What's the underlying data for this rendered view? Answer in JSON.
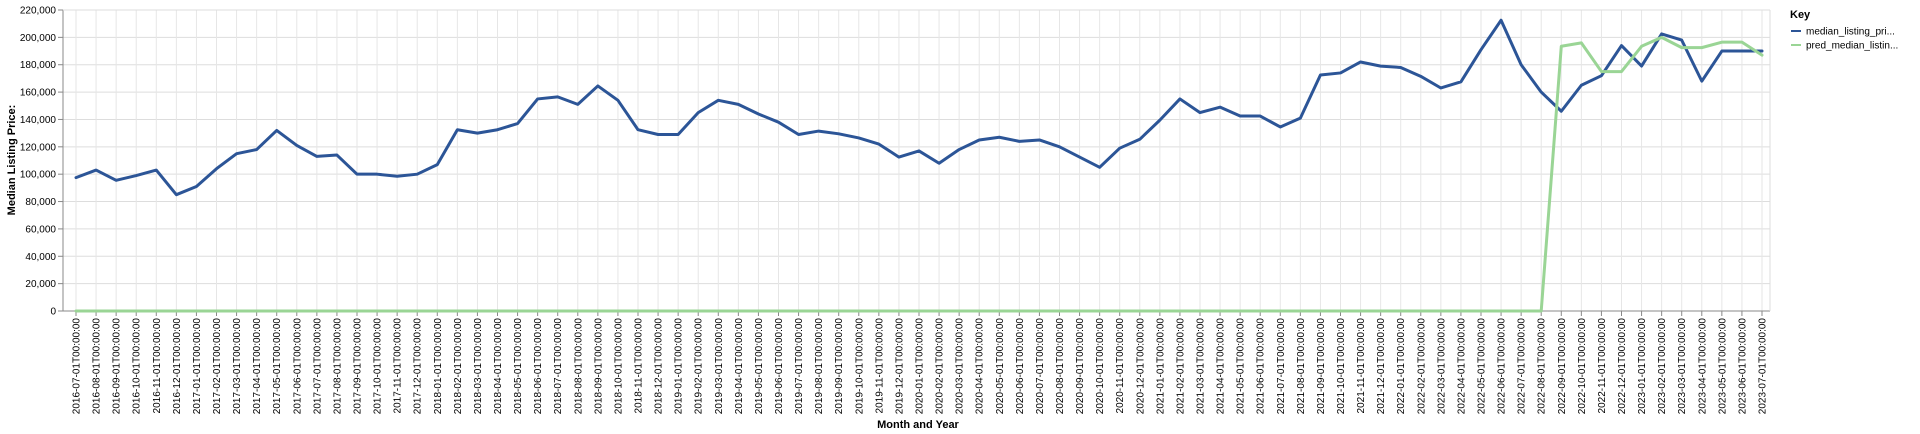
{
  "chart_data": {
    "type": "line",
    "xlabel": "Month and Year",
    "ylabel": "Median Listing Price:",
    "ylim": [
      0,
      220000
    ],
    "yticks": [
      "0",
      "20,000",
      "40,000",
      "60,000",
      "80,000",
      "100,000",
      "120,000",
      "140,000",
      "160,000",
      "180,000",
      "200,000",
      "220,000"
    ],
    "grid": true,
    "legend_position": "right",
    "legend_title": "Key",
    "categories": [
      "2016-07-01T00:00:00",
      "2016-08-01T00:00:00",
      "2016-09-01T00:00:00",
      "2016-10-01T00:00:00",
      "2016-11-01T00:00:00",
      "2016-12-01T00:00:00",
      "2017-01-01T00:00:00",
      "2017-02-01T00:00:00",
      "2017-03-01T00:00:00",
      "2017-04-01T00:00:00",
      "2017-05-01T00:00:00",
      "2017-06-01T00:00:00",
      "2017-07-01T00:00:00",
      "2017-08-01T00:00:00",
      "2017-09-01T00:00:00",
      "2017-10-01T00:00:00",
      "2017-11-01T00:00:00",
      "2017-12-01T00:00:00",
      "2018-01-01T00:00:00",
      "2018-02-01T00:00:00",
      "2018-03-01T00:00:00",
      "2018-04-01T00:00:00",
      "2018-05-01T00:00:00",
      "2018-06-01T00:00:00",
      "2018-07-01T00:00:00",
      "2018-08-01T00:00:00",
      "2018-09-01T00:00:00",
      "2018-10-01T00:00:00",
      "2018-11-01T00:00:00",
      "2018-12-01T00:00:00",
      "2019-01-01T00:00:00",
      "2019-02-01T00:00:00",
      "2019-03-01T00:00:00",
      "2019-04-01T00:00:00",
      "2019-05-01T00:00:00",
      "2019-06-01T00:00:00",
      "2019-07-01T00:00:00",
      "2019-08-01T00:00:00",
      "2019-09-01T00:00:00",
      "2019-10-01T00:00:00",
      "2019-11-01T00:00:00",
      "2019-12-01T00:00:00",
      "2020-01-01T00:00:00",
      "2020-02-01T00:00:00",
      "2020-03-01T00:00:00",
      "2020-04-01T00:00:00",
      "2020-05-01T00:00:00",
      "2020-06-01T00:00:00",
      "2020-07-01T00:00:00",
      "2020-08-01T00:00:00",
      "2020-09-01T00:00:00",
      "2020-10-01T00:00:00",
      "2020-11-01T00:00:00",
      "2020-12-01T00:00:00",
      "2021-01-01T00:00:00",
      "2021-02-01T00:00:00",
      "2021-03-01T00:00:00",
      "2021-04-01T00:00:00",
      "2021-05-01T00:00:00",
      "2021-06-01T00:00:00",
      "2021-07-01T00:00:00",
      "2021-08-01T00:00:00",
      "2021-09-01T00:00:00",
      "2021-10-01T00:00:00",
      "2021-11-01T00:00:00",
      "2021-12-01T00:00:00",
      "2022-01-01T00:00:00",
      "2022-02-01T00:00:00",
      "2022-03-01T00:00:00",
      "2022-04-01T00:00:00",
      "2022-05-01T00:00:00",
      "2022-06-01T00:00:00",
      "2022-07-01T00:00:00",
      "2022-08-01T00:00:00",
      "2022-09-01T00:00:00",
      "2022-10-01T00:00:00",
      "2022-11-01T00:00:00",
      "2022-12-01T00:00:00",
      "2023-01-01T00:00:00",
      "2023-02-01T00:00:00",
      "2023-03-01T00:00:00",
      "2023-04-01T00:00:00",
      "2023-05-01T00:00:00",
      "2023-06-01T00:00:00",
      "2023-07-01T00:00:00"
    ],
    "series": [
      {
        "name": "median_listing_pri...",
        "color": "#2c5597",
        "values": [
          97500,
          103000,
          95500,
          99000,
          103000,
          85000,
          91000,
          104000,
          115000,
          118000,
          132000,
          121000,
          113000,
          114000,
          100000,
          100000,
          98500,
          100000,
          107000,
          132500,
          130000,
          132500,
          137000,
          155000,
          156500,
          151000,
          164500,
          154000,
          132500,
          129000,
          129000,
          145000,
          154000,
          151000,
          144000,
          138000,
          129000,
          131500,
          129500,
          126500,
          122000,
          112500,
          117000,
          108000,
          118000,
          125000,
          127000,
          124000,
          125000,
          120000,
          112500,
          105000,
          119000,
          125500,
          139500,
          155000,
          145000,
          149000,
          142500,
          142500,
          134500,
          141000,
          172500,
          174000,
          182000,
          179000,
          178000,
          171500,
          163000,
          167500,
          191000,
          212500,
          180000,
          160000,
          146000,
          165000,
          172000,
          194000,
          179000,
          202500,
          198000,
          168000,
          190000,
          190000,
          190000
        ]
      },
      {
        "name": "pred_median_listin...",
        "color": "#9ad595",
        "values": [
          0,
          0,
          0,
          0,
          0,
          0,
          0,
          0,
          0,
          0,
          0,
          0,
          0,
          0,
          0,
          0,
          0,
          0,
          0,
          0,
          0,
          0,
          0,
          0,
          0,
          0,
          0,
          0,
          0,
          0,
          0,
          0,
          0,
          0,
          0,
          0,
          0,
          0,
          0,
          0,
          0,
          0,
          0,
          0,
          0,
          0,
          0,
          0,
          0,
          0,
          0,
          0,
          0,
          0,
          0,
          0,
          0,
          0,
          0,
          0,
          0,
          0,
          0,
          0,
          0,
          0,
          0,
          0,
          0,
          0,
          0,
          0,
          0,
          0,
          193500,
          196000,
          175000,
          175000,
          193500,
          200000,
          192500,
          192500,
          196500,
          196500,
          187000
        ]
      }
    ]
  }
}
